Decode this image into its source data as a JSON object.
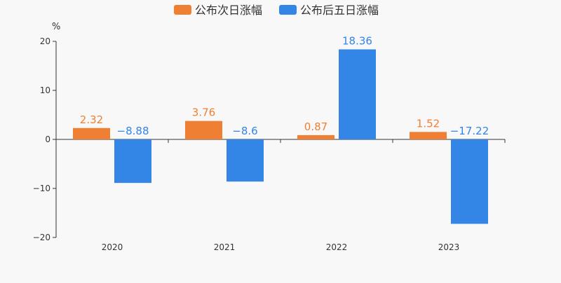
{
  "chart_data": {
    "type": "bar",
    "title": "",
    "xlabel": "",
    "ylabel": "%",
    "categories": [
      "2020",
      "2021",
      "2022",
      "2023"
    ],
    "series": [
      {
        "name": "公布次日涨幅",
        "color": "#ee7f33",
        "values": [
          2.32,
          3.76,
          0.87,
          1.52
        ],
        "labels": [
          "2.32",
          "3.76",
          "0.87",
          "1.52"
        ]
      },
      {
        "name": "公布后五日涨幅",
        "color": "#3385e6",
        "values": [
          -8.88,
          -8.6,
          18.36,
          -17.22
        ],
        "labels": [
          "−8.88",
          "−8.6",
          "18.36",
          "−17.22"
        ]
      }
    ],
    "ylim": [
      -20,
      20
    ],
    "yticks": [
      -20,
      -10,
      0,
      10,
      20
    ],
    "ytick_labels": [
      "−20",
      "−10",
      "0",
      "10",
      "20"
    ],
    "grid": false,
    "legend_position": "top-center"
  },
  "colors": {
    "background": "#f8f8f8",
    "axis": "#333333",
    "tick_text": "#333333"
  }
}
